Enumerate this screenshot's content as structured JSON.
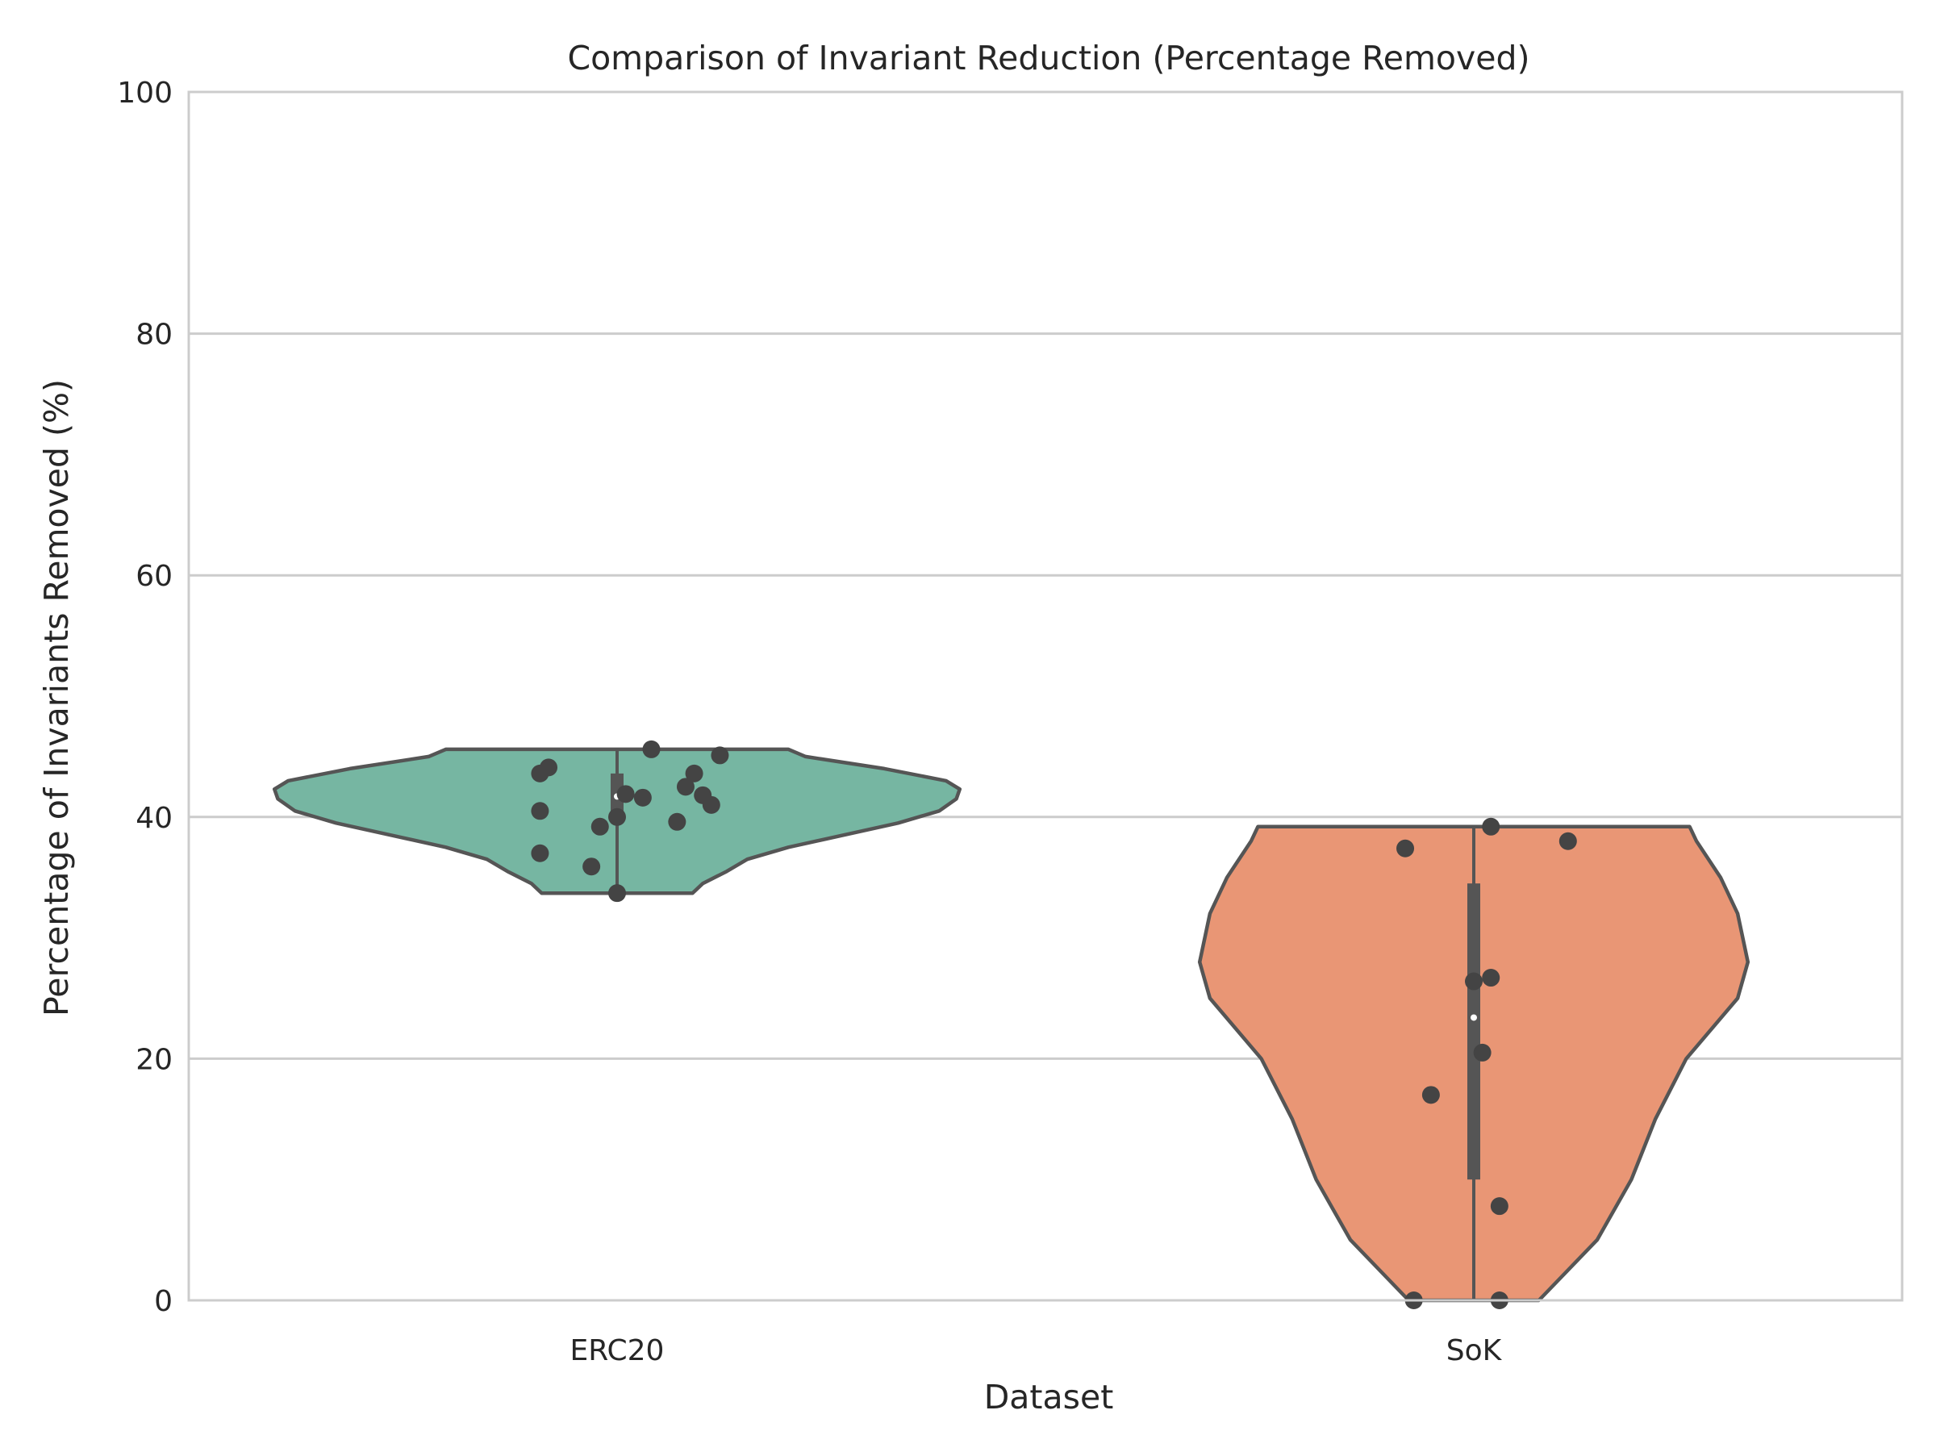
{
  "chart_data": {
    "type": "violin",
    "title": "Comparison of Invariant Reduction (Percentage Removed)",
    "xlabel": "Dataset",
    "ylabel": "Percentage of Invariants Removed (%)",
    "ylim": [
      0,
      100
    ],
    "yticks": [
      0,
      20,
      40,
      60,
      80,
      100
    ],
    "grid": "horizontal",
    "legend": "none",
    "categories": [
      "ERC20",
      "SoK"
    ],
    "series": [
      {
        "category": "ERC20",
        "color": "#76b6a2",
        "min": 33.7,
        "max": 45.6,
        "quartiles": [
          40.0,
          41.7,
          43.6
        ],
        "median": 41.7,
        "density": [
          [
            33.7,
            0.22
          ],
          [
            34.5,
            0.25
          ],
          [
            35.5,
            0.32
          ],
          [
            36.5,
            0.38
          ],
          [
            37.5,
            0.5
          ],
          [
            38.5,
            0.66
          ],
          [
            39.5,
            0.82
          ],
          [
            40.5,
            0.94
          ],
          [
            41.5,
            0.99
          ],
          [
            42.3,
            1.0
          ],
          [
            43.0,
            0.96
          ],
          [
            44.0,
            0.78
          ],
          [
            45.0,
            0.55
          ],
          [
            45.6,
            0.5
          ]
        ],
        "points": [
          {
            "x": 0.04,
            "y": 45.6
          },
          {
            "x": 0.12,
            "y": 45.1
          },
          {
            "x": -0.08,
            "y": 44.1
          },
          {
            "x": -0.09,
            "y": 43.6
          },
          {
            "x": 0.09,
            "y": 43.6
          },
          {
            "x": 0.08,
            "y": 42.5
          },
          {
            "x": 0.01,
            "y": 41.9
          },
          {
            "x": 0.03,
            "y": 41.6
          },
          {
            "x": 0.1,
            "y": 41.8
          },
          {
            "x": 0.11,
            "y": 41.0
          },
          {
            "x": -0.09,
            "y": 40.5
          },
          {
            "x": 0.0,
            "y": 40.0
          },
          {
            "x": 0.07,
            "y": 39.6
          },
          {
            "x": -0.02,
            "y": 39.2
          },
          {
            "x": -0.09,
            "y": 37.0
          },
          {
            "x": -0.03,
            "y": 35.9
          },
          {
            "x": 0.0,
            "y": 33.7
          }
        ]
      },
      {
        "category": "SoK",
        "color": "#e99675",
        "min": 0,
        "max": 39.2,
        "quartiles": [
          10.0,
          23.4,
          34.5
        ],
        "median": 23.4,
        "density": [
          [
            0,
            0.19
          ],
          [
            5,
            0.36
          ],
          [
            10,
            0.46
          ],
          [
            15,
            0.53
          ],
          [
            20,
            0.62
          ],
          [
            25,
            0.77
          ],
          [
            28,
            0.8
          ],
          [
            32,
            0.77
          ],
          [
            35,
            0.72
          ],
          [
            38,
            0.65
          ],
          [
            39.2,
            0.63
          ]
        ],
        "points": [
          {
            "x": 0.02,
            "y": 39.2
          },
          {
            "x": 0.11,
            "y": 38.0
          },
          {
            "x": -0.08,
            "y": 37.4
          },
          {
            "x": 0.02,
            "y": 26.7
          },
          {
            "x": 0.0,
            "y": 26.4
          },
          {
            "x": 0.01,
            "y": 20.5
          },
          {
            "x": -0.05,
            "y": 17.0
          },
          {
            "x": 0.03,
            "y": 7.8
          },
          {
            "x": -0.07,
            "y": 0.0
          },
          {
            "x": 0.03,
            "y": 0.0
          }
        ]
      }
    ]
  }
}
